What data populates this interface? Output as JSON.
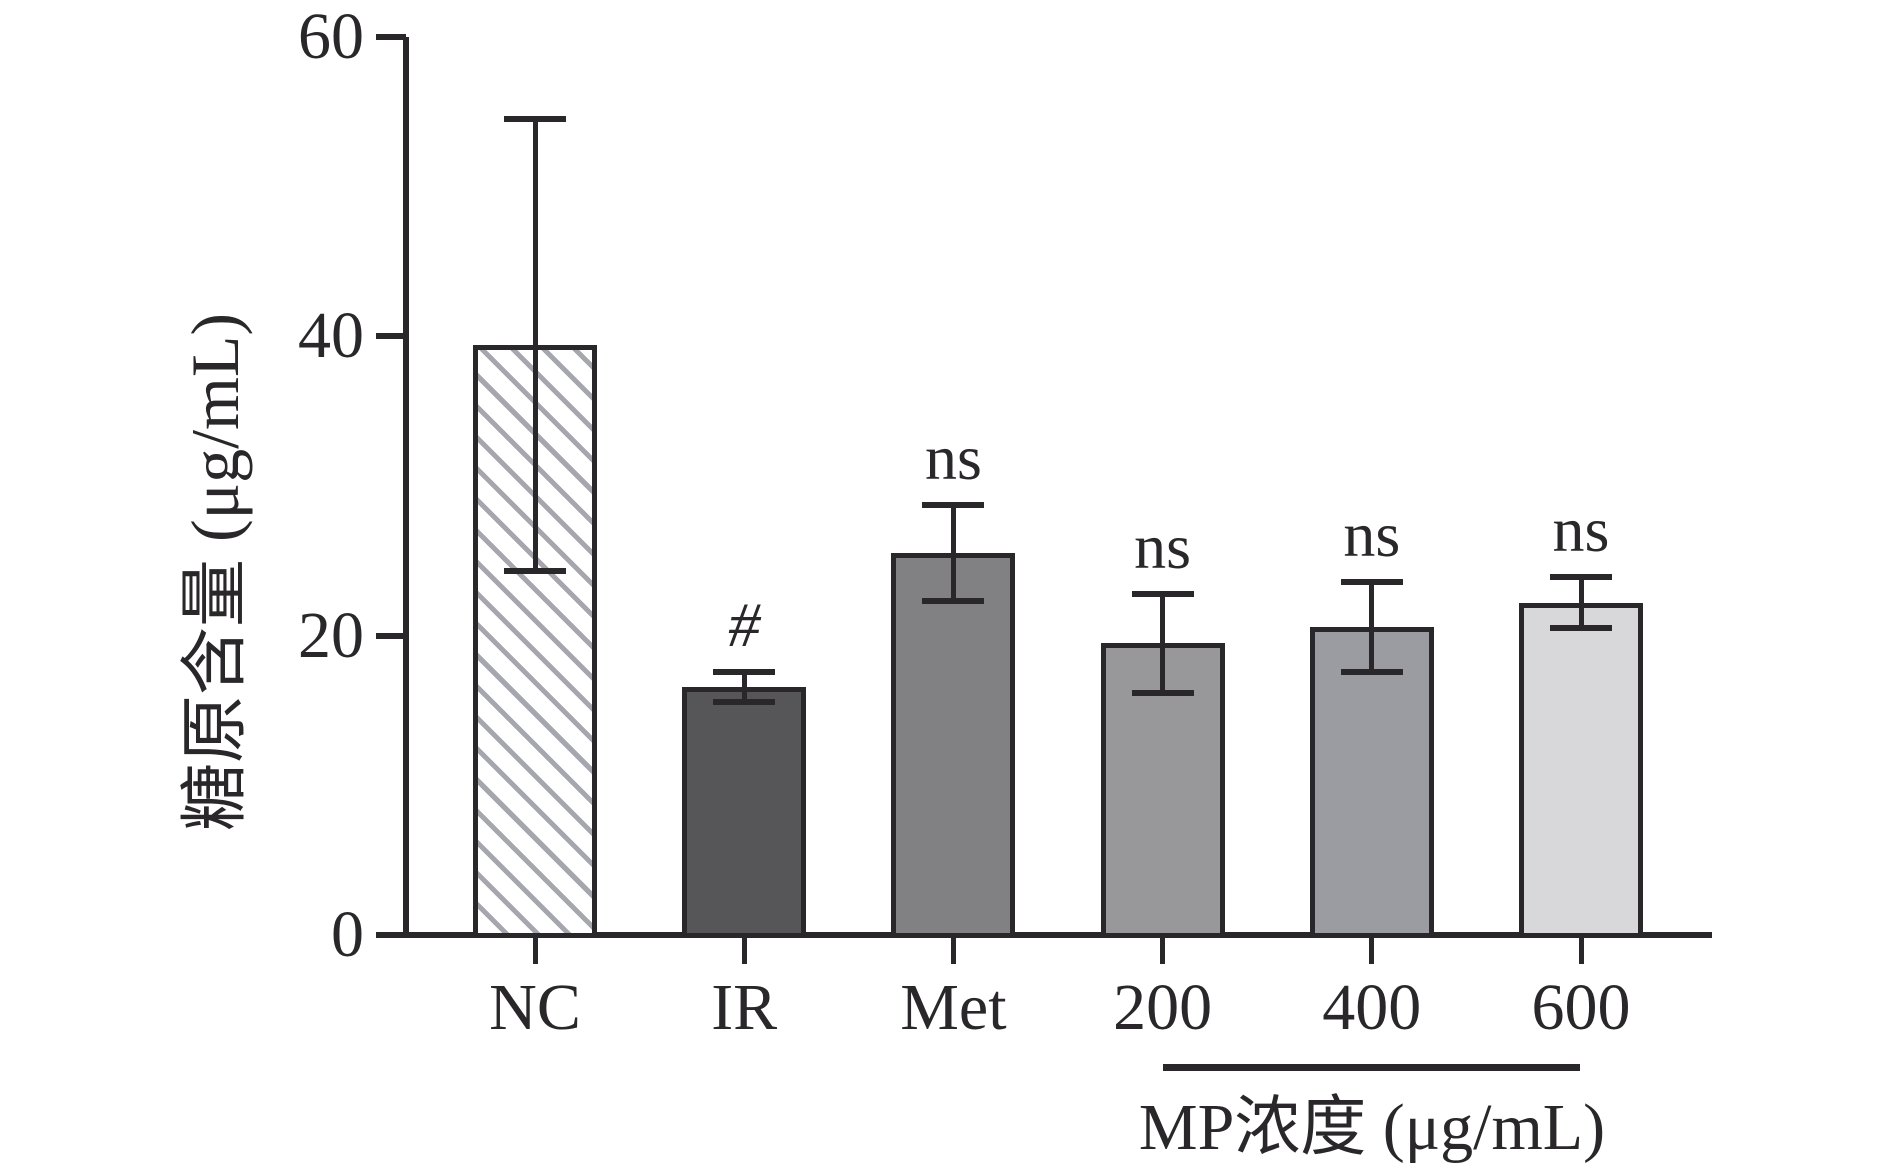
{
  "chart_data": {
    "type": "bar",
    "title": "",
    "ylabel": "糖原含量 (μg/mL)",
    "xlabel": "",
    "group_label": "MP浓度 (μg/mL)",
    "group_span_categories": [
      "200",
      "600"
    ],
    "categories": [
      "NC",
      "IR",
      "Met",
      "200",
      "400",
      "600"
    ],
    "values": [
      39.4,
      16.6,
      25.5,
      19.5,
      20.6,
      22.2
    ],
    "errors": [
      15.1,
      1.0,
      3.2,
      3.3,
      3.0,
      1.7
    ],
    "annotations": [
      "",
      "#",
      "ns",
      "ns",
      "ns",
      "ns"
    ],
    "ylim": [
      0,
      60
    ],
    "yticks": [
      "0",
      "20",
      "40",
      "60"
    ],
    "grid": false,
    "legend_position": "none",
    "line_color": "#29272a",
    "bar_styles": [
      {
        "name": "hatched-white",
        "fill": "#ffffff",
        "hatch": "diagonal-down",
        "hatch_color": "#a6a6ae"
      },
      {
        "name": "dark-gray",
        "fill": "#565659",
        "hatch": "none",
        "hatch_color": ""
      },
      {
        "name": "medium-gray",
        "fill": "#818184",
        "hatch": "none",
        "hatch_color": ""
      },
      {
        "name": "gray",
        "fill": "#98989b",
        "hatch": "none",
        "hatch_color": ""
      },
      {
        "name": "blue-gray",
        "fill": "#9b9ba2",
        "hatch": "none",
        "hatch_color": ""
      },
      {
        "name": "light-gray",
        "fill": "#d8d8da",
        "hatch": "none",
        "hatch_color": ""
      }
    ]
  }
}
